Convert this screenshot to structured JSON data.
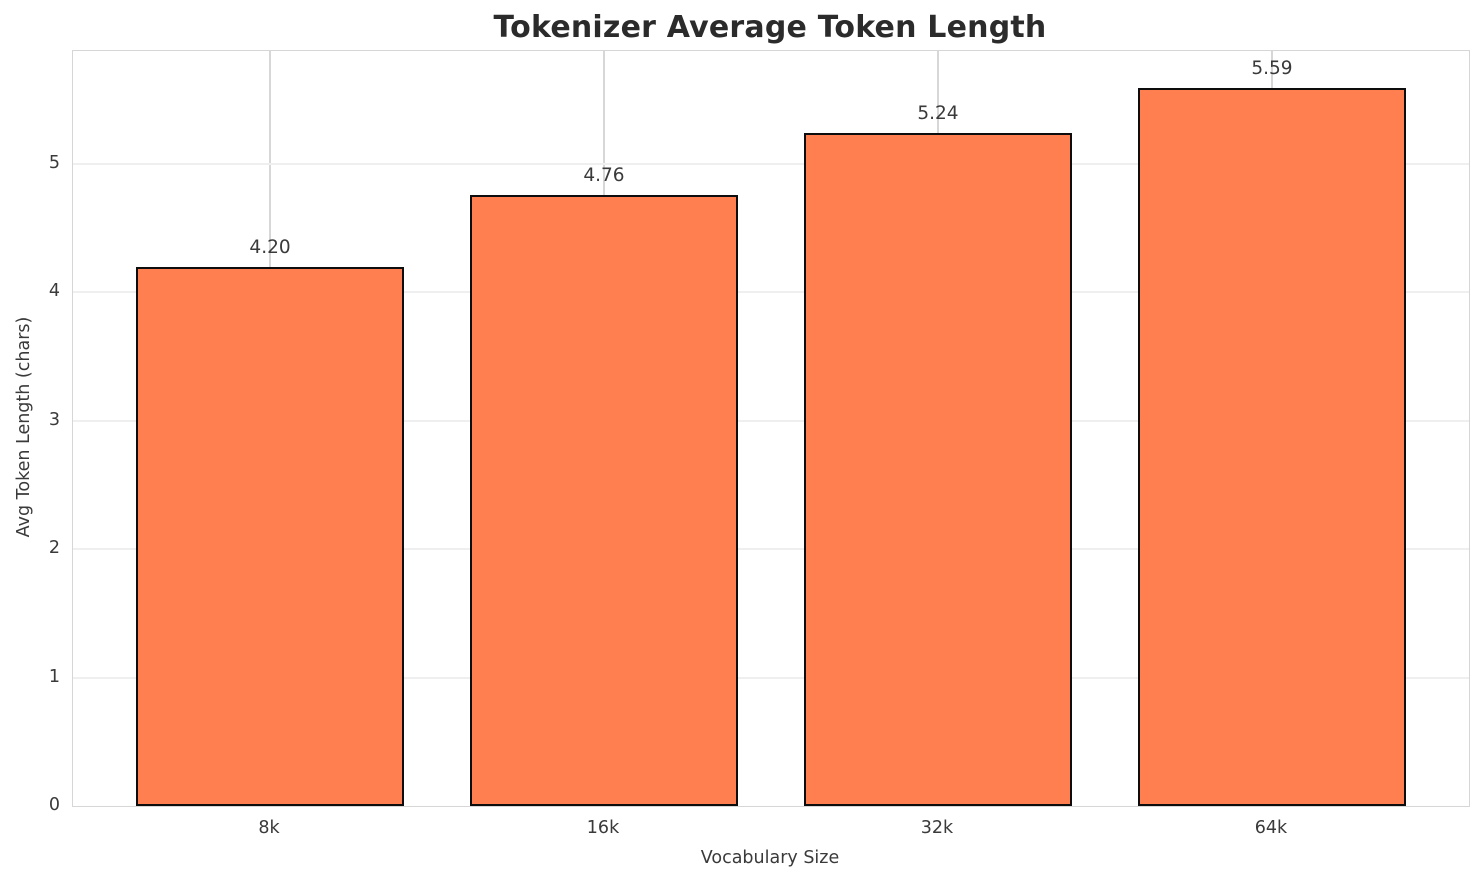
{
  "chart_data": {
    "type": "bar",
    "title": "Tokenizer Average Token Length",
    "xlabel": "Vocabulary Size",
    "ylabel": "Avg Token Length (chars)",
    "categories": [
      "8k",
      "16k",
      "32k",
      "64k"
    ],
    "values": [
      4.2,
      4.76,
      5.24,
      5.59
    ],
    "value_labels": [
      "4.20",
      "4.76",
      "5.24",
      "5.59"
    ],
    "yticks": [
      0,
      1,
      2,
      3,
      4,
      5
    ],
    "ylim": [
      0,
      5.88
    ],
    "grid": "both",
    "legend_position": "none",
    "colors": {
      "bar_fill": "#ff7f50",
      "bar_edge": "#0d0d0d",
      "grid_horizontal": "#efefef",
      "grid_vertical": "#d7d7d7",
      "spine": "#d6d6d6",
      "tick_text": "#3a3a3a",
      "title_text": "#2b2b2b"
    }
  }
}
